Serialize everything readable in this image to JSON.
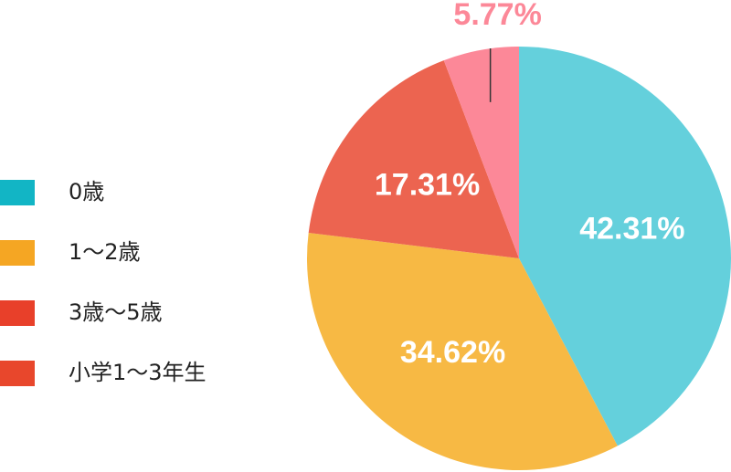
{
  "chart_data": {
    "type": "pie",
    "categories": [
      "0歳",
      "1〜2歳",
      "3歳〜5歳",
      "小学1〜3年生"
    ],
    "values": [
      42.31,
      34.62,
      17.31,
      5.77
    ],
    "value_labels": [
      "42.31%",
      "34.62%",
      "17.31%",
      "5.77%"
    ],
    "colors": [
      "#64d0dc",
      "#f7b944",
      "#ec6450",
      "#fc8898"
    ],
    "legend_colors": [
      "#12b5c5",
      "#f5a623",
      "#e8402a",
      "#e8472c"
    ],
    "value_label_colors": [
      "#ffffff",
      "#ffffff",
      "#ffffff",
      "#fc8898"
    ]
  }
}
